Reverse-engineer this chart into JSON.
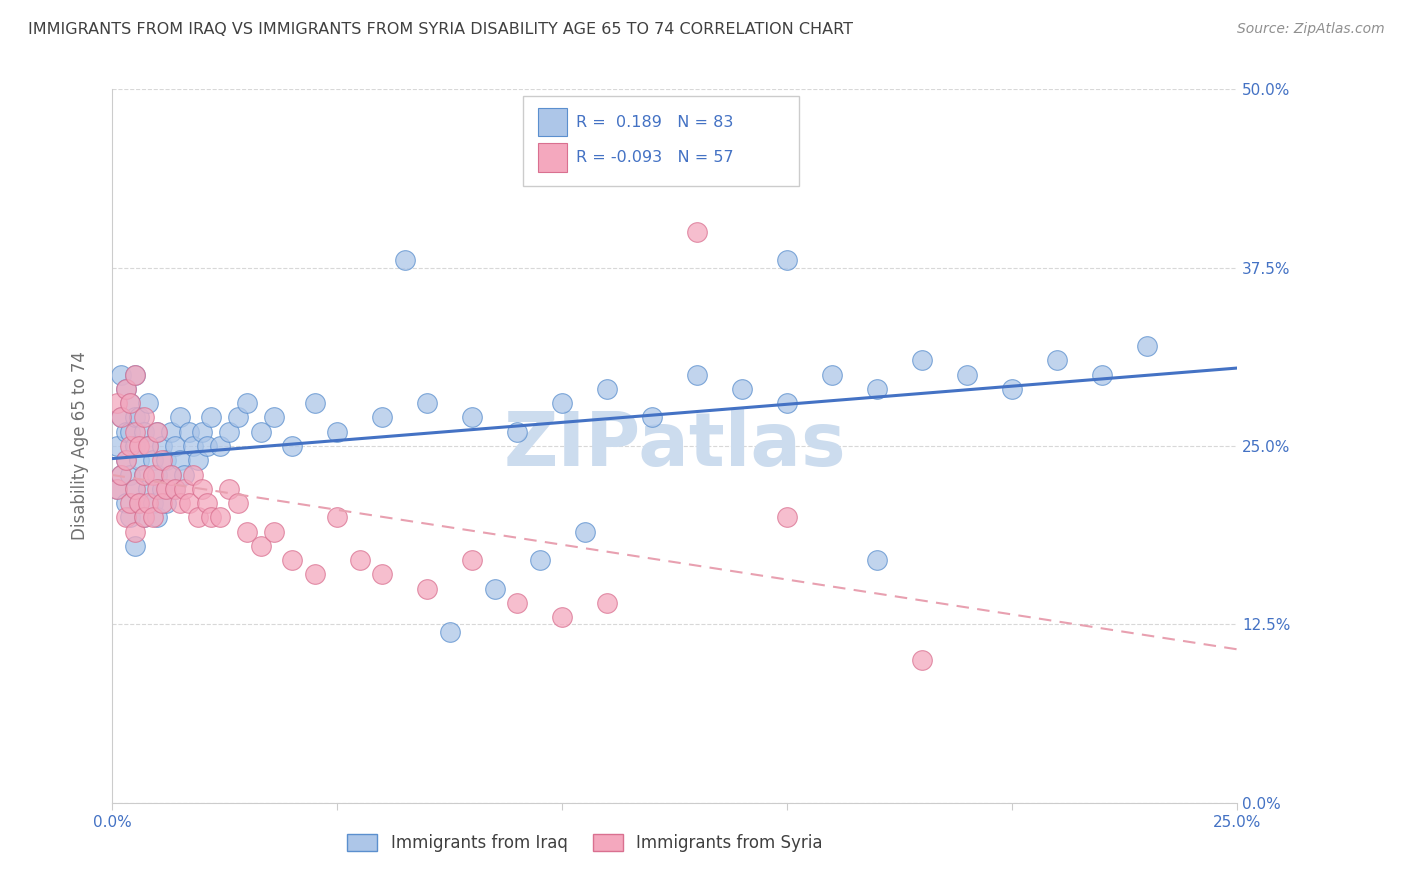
{
  "title": "IMMIGRANTS FROM IRAQ VS IMMIGRANTS FROM SYRIA DISABILITY AGE 65 TO 74 CORRELATION CHART",
  "source": "Source: ZipAtlas.com",
  "ylabel": "Disability Age 65 to 74",
  "legend_iraq_label": "Immigrants from Iraq",
  "legend_syria_label": "Immigrants from Syria",
  "iraq_R": 0.189,
  "iraq_N": 83,
  "syria_R": -0.093,
  "syria_N": 57,
  "xmin": 0.0,
  "xmax": 0.25,
  "ymin": 0.0,
  "ymax": 0.5,
  "xticks": [
    0.0,
    0.05,
    0.1,
    0.15,
    0.2,
    0.25
  ],
  "yticks": [
    0.0,
    0.125,
    0.25,
    0.375,
    0.5
  ],
  "ytick_labels": [
    "0.0%",
    "12.5%",
    "25.0%",
    "37.5%",
    "50.0%"
  ],
  "xtick_labels": [
    "0.0%",
    "",
    "",
    "",
    "",
    "25.0%"
  ],
  "iraq_color": "#adc6e8",
  "syria_color": "#f4a8be",
  "iraq_edge_color": "#5b8fce",
  "syria_edge_color": "#d97090",
  "iraq_line_color": "#4472c4",
  "syria_line_color": "#e8a0b0",
  "background_color": "#ffffff",
  "grid_color": "#d8d8d8",
  "title_color": "#404040",
  "axis_label_color": "#707070",
  "tick_label_color": "#4472c4",
  "watermark_text": "ZIPatlas",
  "watermark_color": "#ccdcee",
  "iraq_x": [
    0.001,
    0.001,
    0.002,
    0.002,
    0.002,
    0.003,
    0.003,
    0.003,
    0.003,
    0.004,
    0.004,
    0.004,
    0.004,
    0.005,
    0.005,
    0.005,
    0.005,
    0.005,
    0.006,
    0.006,
    0.006,
    0.007,
    0.007,
    0.007,
    0.008,
    0.008,
    0.008,
    0.009,
    0.009,
    0.01,
    0.01,
    0.01,
    0.011,
    0.011,
    0.012,
    0.012,
    0.013,
    0.013,
    0.014,
    0.014,
    0.015,
    0.015,
    0.016,
    0.017,
    0.018,
    0.019,
    0.02,
    0.021,
    0.022,
    0.024,
    0.026,
    0.028,
    0.03,
    0.033,
    0.036,
    0.04,
    0.045,
    0.05,
    0.06,
    0.07,
    0.08,
    0.09,
    0.1,
    0.11,
    0.12,
    0.13,
    0.14,
    0.15,
    0.16,
    0.17,
    0.18,
    0.19,
    0.2,
    0.21,
    0.22,
    0.23,
    0.15,
    0.17,
    0.065,
    0.075,
    0.085,
    0.095,
    0.105
  ],
  "iraq_y": [
    0.22,
    0.25,
    0.23,
    0.27,
    0.3,
    0.21,
    0.24,
    0.26,
    0.29,
    0.2,
    0.23,
    0.26,
    0.28,
    0.18,
    0.22,
    0.25,
    0.27,
    0.3,
    0.21,
    0.24,
    0.27,
    0.2,
    0.23,
    0.26,
    0.22,
    0.25,
    0.28,
    0.21,
    0.24,
    0.2,
    0.23,
    0.26,
    0.22,
    0.25,
    0.21,
    0.24,
    0.23,
    0.26,
    0.22,
    0.25,
    0.24,
    0.27,
    0.23,
    0.26,
    0.25,
    0.24,
    0.26,
    0.25,
    0.27,
    0.25,
    0.26,
    0.27,
    0.28,
    0.26,
    0.27,
    0.25,
    0.28,
    0.26,
    0.27,
    0.28,
    0.27,
    0.26,
    0.28,
    0.29,
    0.27,
    0.3,
    0.29,
    0.28,
    0.3,
    0.29,
    0.31,
    0.3,
    0.29,
    0.31,
    0.3,
    0.32,
    0.38,
    0.17,
    0.38,
    0.12,
    0.15,
    0.17,
    0.19
  ],
  "syria_x": [
    0.001,
    0.001,
    0.002,
    0.002,
    0.003,
    0.003,
    0.003,
    0.004,
    0.004,
    0.004,
    0.005,
    0.005,
    0.005,
    0.005,
    0.006,
    0.006,
    0.007,
    0.007,
    0.007,
    0.008,
    0.008,
    0.009,
    0.009,
    0.01,
    0.01,
    0.011,
    0.011,
    0.012,
    0.013,
    0.014,
    0.015,
    0.016,
    0.017,
    0.018,
    0.019,
    0.02,
    0.021,
    0.022,
    0.024,
    0.026,
    0.028,
    0.03,
    0.033,
    0.036,
    0.04,
    0.045,
    0.05,
    0.055,
    0.06,
    0.07,
    0.08,
    0.09,
    0.1,
    0.11,
    0.13,
    0.15,
    0.18
  ],
  "syria_y": [
    0.22,
    0.28,
    0.23,
    0.27,
    0.2,
    0.24,
    0.29,
    0.21,
    0.25,
    0.28,
    0.19,
    0.22,
    0.26,
    0.3,
    0.21,
    0.25,
    0.2,
    0.23,
    0.27,
    0.21,
    0.25,
    0.2,
    0.23,
    0.22,
    0.26,
    0.21,
    0.24,
    0.22,
    0.23,
    0.22,
    0.21,
    0.22,
    0.21,
    0.23,
    0.2,
    0.22,
    0.21,
    0.2,
    0.2,
    0.22,
    0.21,
    0.19,
    0.18,
    0.19,
    0.17,
    0.16,
    0.2,
    0.17,
    0.16,
    0.15,
    0.17,
    0.14,
    0.13,
    0.14,
    0.4,
    0.2,
    0.1
  ]
}
